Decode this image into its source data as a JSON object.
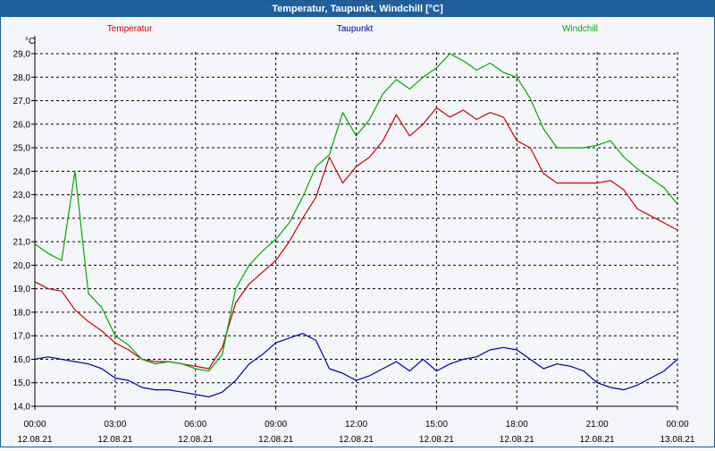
{
  "window": {
    "title": "Temperatur, Taupunkt, Windchill [°C]"
  },
  "colors": {
    "temperatur": "#cc0000",
    "taupunkt": "#0000aa",
    "windchill": "#00aa00",
    "titlebar": "#1f5f9e",
    "grid": "#000000"
  },
  "chart_data": {
    "type": "line",
    "title": "Temperatur, Taupunkt, Windchill [°C]",
    "ylabel": "°C",
    "xlabel": "",
    "ylim": [
      14.0,
      29.0
    ],
    "y_ticks": [
      "14,0",
      "15,0",
      "16,0",
      "17,0",
      "18,0",
      "19,0",
      "20,0",
      "21,0",
      "22,0",
      "23,0",
      "24,0",
      "25,0",
      "26,0",
      "27,0",
      "28,0",
      "29,0"
    ],
    "xlim": [
      0,
      24
    ],
    "x_ticks": [
      {
        "time": "00:00",
        "date": "12.08.21"
      },
      {
        "time": "03:00",
        "date": "12.08.21"
      },
      {
        "time": "06:00",
        "date": "12.08.21"
      },
      {
        "time": "09:00",
        "date": "12.08.21"
      },
      {
        "time": "12:00",
        "date": "12.08.21"
      },
      {
        "time": "15:00",
        "date": "12.08.21"
      },
      {
        "time": "18:00",
        "date": "12.08.21"
      },
      {
        "time": "21:00",
        "date": "12.08.21"
      },
      {
        "time": "00:00",
        "date": "13.08.21"
      }
    ],
    "grid": true,
    "x_hours": [
      0,
      0.5,
      1,
      1.5,
      2,
      2.5,
      3,
      3.5,
      4,
      4.5,
      5,
      5.5,
      6,
      6.5,
      7,
      7.5,
      8,
      8.5,
      9,
      9.5,
      10,
      10.5,
      11,
      11.5,
      12,
      12.5,
      13,
      13.5,
      14,
      14.5,
      15,
      15.5,
      16,
      16.5,
      17,
      17.5,
      18,
      18.5,
      19,
      19.5,
      20,
      20.5,
      21,
      21.5,
      22,
      22.5,
      23,
      23.5,
      24
    ],
    "series": [
      {
        "name": "Temperatur",
        "key": "temperatur",
        "values": [
          19.3,
          19.0,
          18.9,
          18.1,
          17.6,
          17.2,
          16.7,
          16.4,
          16.0,
          15.9,
          15.9,
          15.8,
          15.7,
          15.6,
          16.5,
          18.4,
          19.2,
          19.7,
          20.2,
          21.0,
          22.0,
          22.9,
          24.6,
          23.5,
          24.2,
          24.6,
          25.3,
          26.4,
          25.5,
          26.0,
          26.7,
          26.3,
          26.6,
          26.2,
          26.5,
          26.3,
          25.3,
          25.0,
          23.9,
          23.5,
          23.5,
          23.5,
          23.5,
          23.6,
          23.2,
          22.4,
          22.1,
          21.8,
          21.5
        ]
      },
      {
        "name": "Taupunkt",
        "key": "taupunkt",
        "values": [
          16.0,
          16.1,
          16.0,
          15.9,
          15.8,
          15.6,
          15.2,
          15.1,
          14.8,
          14.7,
          14.7,
          14.6,
          14.5,
          14.4,
          14.6,
          15.1,
          15.8,
          16.2,
          16.7,
          16.9,
          17.1,
          16.8,
          15.6,
          15.4,
          15.1,
          15.3,
          15.6,
          15.9,
          15.5,
          16.0,
          15.5,
          15.8,
          16.0,
          16.1,
          16.4,
          16.5,
          16.4,
          16.0,
          15.6,
          15.8,
          15.7,
          15.5,
          15.0,
          14.8,
          14.7,
          14.9,
          15.2,
          15.5,
          16.0
        ]
      },
      {
        "name": "Windchill",
        "key": "windchill",
        "values": [
          20.9,
          20.5,
          20.2,
          24.0,
          18.8,
          18.2,
          17.0,
          16.6,
          16.0,
          15.8,
          15.9,
          15.8,
          15.6,
          15.5,
          16.2,
          19.0,
          20.0,
          20.6,
          21.1,
          21.8,
          22.9,
          24.2,
          24.7,
          26.5,
          25.5,
          26.2,
          27.3,
          27.9,
          27.5,
          28.0,
          28.4,
          29.0,
          28.7,
          28.3,
          28.6,
          28.2,
          28.0,
          27.1,
          25.8,
          25.0,
          25.0,
          25.0,
          25.1,
          25.3,
          24.6,
          24.1,
          23.7,
          23.3,
          22.6
        ]
      }
    ]
  }
}
